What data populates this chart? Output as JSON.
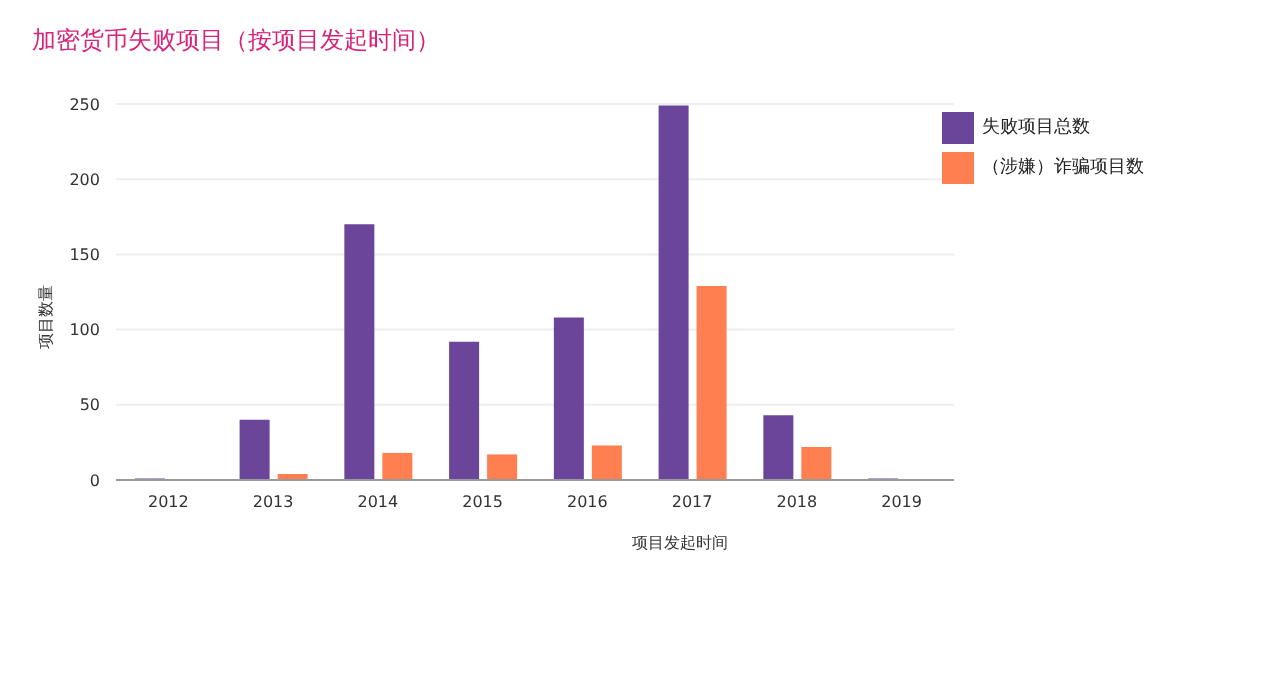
{
  "chart_data": {
    "type": "bar",
    "title": "加密货币失败项目（按项目发起时间）",
    "xlabel": "项目发起时间",
    "ylabel": "项目数量",
    "categories": [
      "2012",
      "2013",
      "2014",
      "2015",
      "2016",
      "2017",
      "2018",
      "2019"
    ],
    "series": [
      {
        "name": "失败项目总数",
        "color": "#6a4599",
        "values": [
          1,
          40,
          170,
          92,
          108,
          249,
          43,
          1
        ]
      },
      {
        "name": "（涉嫌）诈骗项目数",
        "color": "#ff7f50",
        "values": [
          0,
          4,
          18,
          17,
          23,
          129,
          22,
          0
        ]
      }
    ],
    "ylim": [
      0,
      250
    ],
    "yticks": [
      0,
      50,
      100,
      150,
      200,
      250
    ],
    "grid": "y",
    "legend": "top right"
  }
}
